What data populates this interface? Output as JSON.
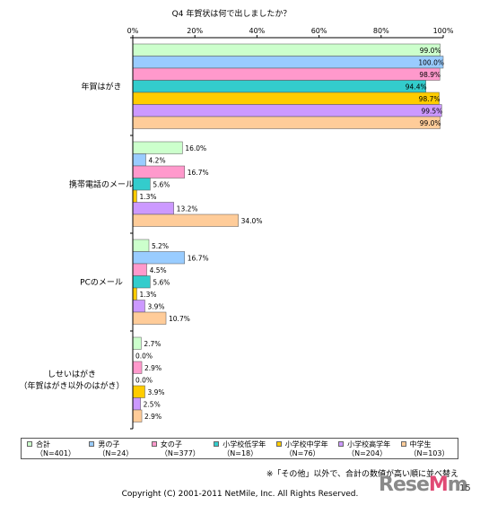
{
  "chart_data": {
    "type": "bar",
    "orientation": "horizontal",
    "title": "Q4 年賀状は何で出しましたか？",
    "xlim": [
      0,
      100
    ],
    "x_ticks": [
      "0%",
      "20%",
      "40%",
      "60%",
      "80%",
      "100%"
    ],
    "categories": [
      "年賀はがき",
      "携帯電話のメール",
      "PCのメール",
      "しせいはがき\n（年賀はがき以外のはがき）"
    ],
    "series": [
      {
        "name": "合計",
        "n": "（N=401）",
        "color": "#ccffcc",
        "values": [
          99.0,
          16.0,
          5.2,
          2.7
        ]
      },
      {
        "name": "男の子",
        "n": "（N=24）",
        "color": "#99ccff",
        "values": [
          100.0,
          4.2,
          16.7,
          0.0
        ]
      },
      {
        "name": "女の子",
        "n": "（N=377）",
        "color": "#ff99cc",
        "values": [
          98.9,
          16.7,
          4.5,
          2.9
        ]
      },
      {
        "name": "小学校低学年",
        "n": "（N=18）",
        "color": "#33cccc",
        "values": [
          94.4,
          5.6,
          5.6,
          0.0
        ]
      },
      {
        "name": "小学校中学年",
        "n": "（N=76）",
        "color": "#ffcc00",
        "values": [
          98.7,
          1.3,
          1.3,
          3.9
        ]
      },
      {
        "name": "小学校高学年",
        "n": "（N=204）",
        "color": "#cc99ff",
        "values": [
          99.5,
          13.2,
          3.9,
          2.5
        ]
      },
      {
        "name": "中学生",
        "n": "（N=103）",
        "color": "#ffcc99",
        "values": [
          99.0,
          34.0,
          10.7,
          2.9
        ]
      }
    ],
    "grid": false,
    "legend": "bottom"
  },
  "note": "※「その他」以外で、合計の数値が高い順に並べ替え",
  "copyright": "Copyright (C) 2001-2011 NetMile, Inc. All Rights Reserved.",
  "watermark": {
    "prefix": "Rese",
    "o": "M",
    "suffix": "m"
  },
  "page_number": "15"
}
